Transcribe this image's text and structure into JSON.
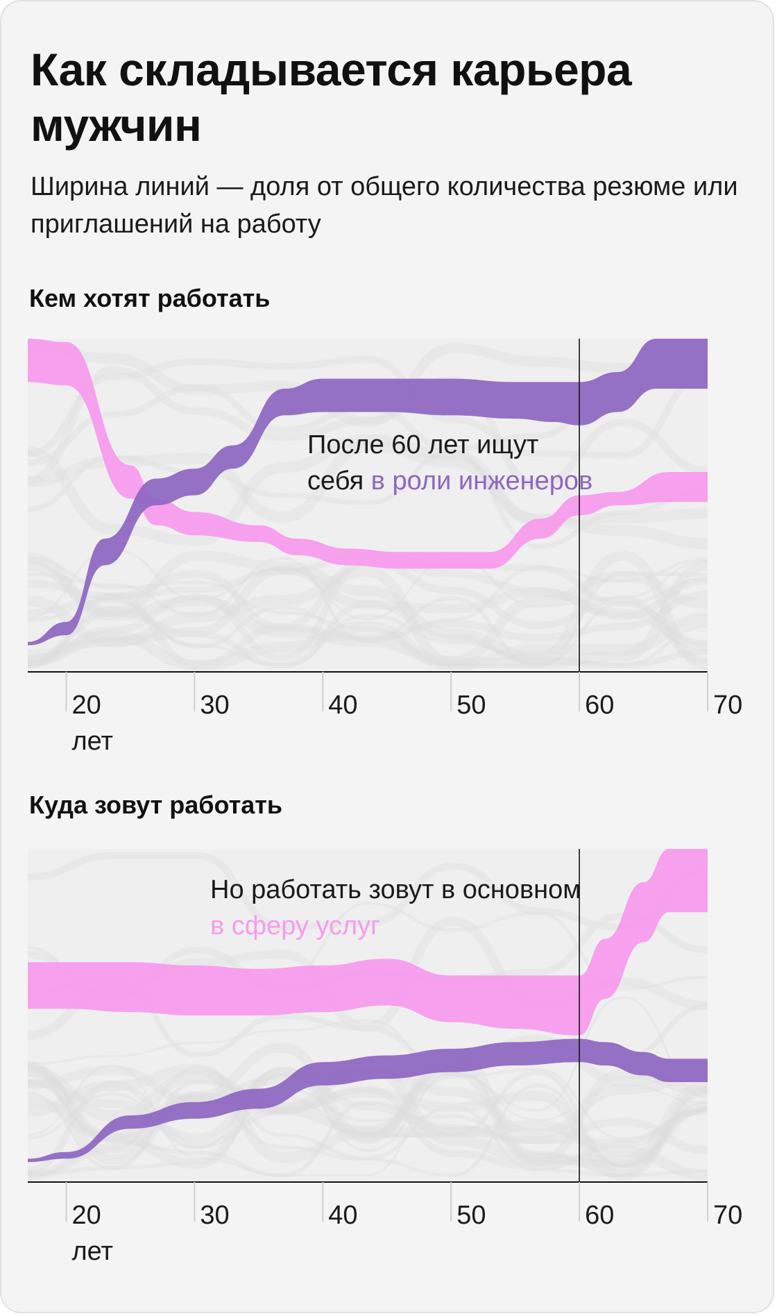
{
  "header": {
    "title": "Как складывается карьера мужчин",
    "subtitle": "Ширина линий — доля от общего количества резюме или приглашений на работу"
  },
  "colors": {
    "background": "#f4f4f4",
    "engineers": "#8d67c2",
    "services": "#f79bec",
    "background_lines": "#dcdcdc"
  },
  "chart_data": [
    {
      "type": "area",
      "title": "Кем хотят работать",
      "x_ticks": [
        20,
        30,
        40,
        50,
        60,
        70
      ],
      "x_tick_sub": "лет",
      "xlim": [
        17,
        70
      ],
      "marker_x": 60,
      "annotation": {
        "text": "После 60 лет ищут себя",
        "highlight": "в роли инженеров",
        "highlight_color": "#8d67c2"
      },
      "series": [
        {
          "color": "#f79bec",
          "x": [
            17,
            20,
            25,
            27,
            30,
            35,
            38,
            42,
            46,
            50,
            53,
            57,
            60,
            63,
            67,
            70
          ],
          "top": [
            0.0,
            0.01,
            0.38,
            0.48,
            0.52,
            0.56,
            0.6,
            0.63,
            0.64,
            0.64,
            0.64,
            0.54,
            0.47,
            0.46,
            0.4,
            0.4
          ],
          "bottom": [
            0.13,
            0.14,
            0.48,
            0.56,
            0.59,
            0.61,
            0.65,
            0.68,
            0.69,
            0.69,
            0.69,
            0.6,
            0.53,
            0.5,
            0.49,
            0.49
          ]
        },
        {
          "color": "#8d67c2",
          "x": [
            17,
            20,
            23,
            27,
            30,
            33,
            37,
            40,
            45,
            50,
            55,
            58,
            60,
            63,
            66,
            70
          ],
          "top": [
            0.91,
            0.85,
            0.6,
            0.42,
            0.39,
            0.32,
            0.15,
            0.12,
            0.12,
            0.12,
            0.13,
            0.13,
            0.13,
            0.1,
            0.0,
            0.0
          ],
          "bottom": [
            0.92,
            0.89,
            0.68,
            0.5,
            0.47,
            0.39,
            0.23,
            0.22,
            0.22,
            0.23,
            0.24,
            0.25,
            0.26,
            0.22,
            0.15,
            0.15
          ]
        }
      ]
    },
    {
      "type": "area",
      "title": "Куда зовут работать",
      "x_ticks": [
        20,
        30,
        40,
        50,
        60,
        70
      ],
      "x_tick_sub": "лет",
      "xlim": [
        17,
        70
      ],
      "marker_x": 60,
      "annotation": {
        "text": "Но работать зовут в основном",
        "highlight": "в сферу услуг",
        "highlight_color": "#f79bec"
      },
      "series": [
        {
          "color": "#f79bec",
          "x": [
            17,
            20,
            25,
            30,
            35,
            40,
            45,
            50,
            55,
            60,
            62,
            65,
            67,
            70
          ],
          "top": [
            0.34,
            0.34,
            0.34,
            0.35,
            0.36,
            0.35,
            0.33,
            0.38,
            0.38,
            0.38,
            0.27,
            0.1,
            0.0,
            0.0
          ],
          "bottom": [
            0.48,
            0.48,
            0.49,
            0.5,
            0.5,
            0.49,
            0.47,
            0.52,
            0.54,
            0.56,
            0.45,
            0.28,
            0.19,
            0.19
          ]
        },
        {
          "color": "#8d67c2",
          "x": [
            17,
            20,
            25,
            30,
            35,
            40,
            45,
            50,
            55,
            60,
            62,
            65,
            67,
            70
          ],
          "top": [
            0.93,
            0.91,
            0.8,
            0.76,
            0.72,
            0.64,
            0.62,
            0.6,
            0.58,
            0.57,
            0.58,
            0.61,
            0.63,
            0.63
          ],
          "bottom": [
            0.94,
            0.93,
            0.84,
            0.81,
            0.78,
            0.71,
            0.69,
            0.67,
            0.65,
            0.64,
            0.65,
            0.68,
            0.7,
            0.7
          ]
        }
      ]
    }
  ]
}
